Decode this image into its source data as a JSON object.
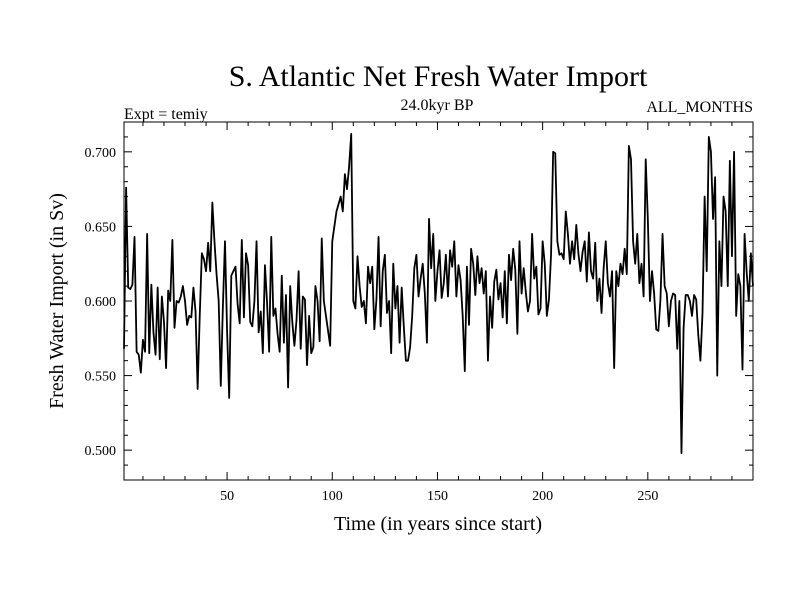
{
  "chart_data": {
    "type": "line",
    "title": "S. Atlantic Net Fresh Water Import",
    "subtitle_left": "Expt = temiy",
    "subtitle_center": "24.0kyr BP",
    "subtitle_right": "ALL_MONTHS",
    "xlabel": "Time (in years since start)",
    "ylabel": "Fresh Water Import (in Sv)",
    "xlim": [
      1,
      300
    ],
    "ylim": [
      0.48,
      0.72
    ],
    "x_ticks": [
      50,
      100,
      150,
      200,
      250
    ],
    "x_tick_labels": [
      "50",
      "100",
      "150",
      "200",
      "250"
    ],
    "y_ticks": [
      0.5,
      0.55,
      0.6,
      0.65,
      0.7
    ],
    "y_tick_labels": [
      "0.500",
      "0.550",
      "0.600",
      "0.650",
      "0.700"
    ],
    "series": [
      {
        "name": "Fresh Water Import",
        "x_start": 1,
        "x_step": 1,
        "values": [
          0.568,
          0.676,
          0.609,
          0.608,
          0.611,
          0.643,
          0.566,
          0.564,
          0.552,
          0.574,
          0.566,
          0.645,
          0.565,
          0.611,
          0.579,
          0.564,
          0.609,
          0.561,
          0.603,
          0.586,
          0.555,
          0.607,
          0.6,
          0.641,
          0.582,
          0.6,
          0.599,
          0.603,
          0.61,
          0.6,
          0.584,
          0.59,
          0.589,
          0.609,
          0.593,
          0.541,
          0.59,
          0.632,
          0.628,
          0.62,
          0.639,
          0.62,
          0.666,
          0.64,
          0.618,
          0.6,
          0.543,
          0.596,
          0.64,
          0.58,
          0.535,
          0.617,
          0.62,
          0.623,
          0.598,
          0.585,
          0.641,
          0.589,
          0.632,
          0.624,
          0.586,
          0.583,
          0.6,
          0.64,
          0.579,
          0.593,
          0.565,
          0.624,
          0.599,
          0.566,
          0.643,
          0.59,
          0.595,
          0.578,
          0.566,
          0.617,
          0.572,
          0.604,
          0.542,
          0.61,
          0.586,
          0.57,
          0.587,
          0.62,
          0.568,
          0.603,
          0.601,
          0.557,
          0.59,
          0.565,
          0.569,
          0.61,
          0.6,
          0.573,
          0.642,
          0.6,
          0.59,
          0.58,
          0.57,
          0.64,
          0.65,
          0.66,
          0.665,
          0.67,
          0.66,
          0.685,
          0.675,
          0.69,
          0.712,
          0.6,
          0.595,
          0.63,
          0.61,
          0.596,
          0.6,
          0.585,
          0.623,
          0.612,
          0.623,
          0.581,
          0.601,
          0.643,
          0.583,
          0.62,
          0.631,
          0.592,
          0.6,
          0.565,
          0.625,
          0.595,
          0.61,
          0.572,
          0.609,
          0.583,
          0.56,
          0.56,
          0.569,
          0.59,
          0.622,
          0.631,
          0.603,
          0.615,
          0.625,
          0.605,
          0.572,
          0.655,
          0.622,
          0.645,
          0.6,
          0.62,
          0.634,
          0.602,
          0.612,
          0.631,
          0.603,
          0.634,
          0.623,
          0.64,
          0.603,
          0.624,
          0.614,
          0.59,
          0.553,
          0.623,
          0.584,
          0.635,
          0.625,
          0.604,
          0.63,
          0.612,
          0.622,
          0.605,
          0.62,
          0.56,
          0.603,
          0.582,
          0.613,
          0.621,
          0.601,
          0.612,
          0.589,
          0.62,
          0.585,
          0.631,
          0.614,
          0.635,
          0.621,
          0.578,
          0.64,
          0.605,
          0.622,
          0.606,
          0.593,
          0.6,
          0.645,
          0.615,
          0.623,
          0.591,
          0.595,
          0.64,
          0.625,
          0.59,
          0.601,
          0.631,
          0.7,
          0.699,
          0.64,
          0.631,
          0.632,
          0.628,
          0.66,
          0.645,
          0.625,
          0.64,
          0.628,
          0.651,
          0.632,
          0.62,
          0.633,
          0.64,
          0.613,
          0.646,
          0.62,
          0.615,
          0.639,
          0.6,
          0.615,
          0.592,
          0.622,
          0.64,
          0.612,
          0.603,
          0.62,
          0.555,
          0.62,
          0.61,
          0.625,
          0.618,
          0.635,
          0.618,
          0.704,
          0.695,
          0.64,
          0.625,
          0.645,
          0.612,
          0.625,
          0.603,
          0.695,
          0.655,
          0.6,
          0.62,
          0.605,
          0.581,
          0.58,
          0.601,
          0.645,
          0.61,
          0.605,
          0.583,
          0.6,
          0.605,
          0.604,
          0.568,
          0.6,
          0.498,
          0.582,
          0.604,
          0.604,
          0.6,
          0.59,
          0.604,
          0.601,
          0.577,
          0.56,
          0.592,
          0.67,
          0.62,
          0.71,
          0.7,
          0.655,
          0.683,
          0.55,
          0.64,
          0.61,
          0.67,
          0.66,
          0.61,
          0.694,
          0.63,
          0.7,
          0.59,
          0.618,
          0.61,
          0.554,
          0.645,
          0.619,
          0.6,
          0.632,
          0.61
        ]
      }
    ]
  }
}
